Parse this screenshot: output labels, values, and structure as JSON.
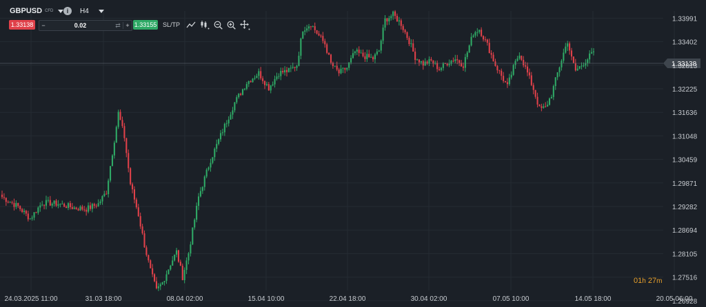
{
  "instrument": {
    "symbol": "GBPUSD",
    "type": "CFD",
    "timeframe": "H4"
  },
  "trade_panel": {
    "sell_price": "1.33138",
    "minus_label": "−",
    "quantity": "0.02",
    "swap_icon": "⇄",
    "plus_label": "+",
    "buy_price": "1.33155",
    "sltp_label": "SL/TP"
  },
  "toolbar_icons": [
    "line-chart-icon",
    "candles-icon",
    "zoom-out-icon",
    "zoom-in-icon",
    "crosshair-move-icon"
  ],
  "price_axis": {
    "labels": [
      "1.33991",
      "1.33402",
      "1.32813",
      "1.32225",
      "1.31636",
      "1.31048",
      "1.30459",
      "1.29871",
      "1.29282",
      "1.28694",
      "1.28105",
      "1.27516",
      "1.26928"
    ],
    "current_price": "1.33138"
  },
  "time_axis": {
    "labels": [
      "24.03.2025 11:00",
      "31.03 18:00",
      "08.04 02:00",
      "15.04 10:00",
      "22.04 18:00",
      "30.04 02:00",
      "07.05 10:00",
      "14.05 18:00",
      "20.05 06:00"
    ]
  },
  "countdown": {
    "hours": "01",
    "h_unit": "h",
    "minutes": "27",
    "m_unit": "m"
  },
  "colors": {
    "background": "#1b2027",
    "up": "#2faa66",
    "down": "#e0414a",
    "grid": "#252b33",
    "current_line": "#6b737b",
    "countdown": "#e8a02b"
  },
  "chart_data": {
    "type": "candlestick",
    "symbol": "GBPUSD",
    "timeframe": "H4",
    "ylim": [
      1.2677,
      1.3417
    ],
    "close_path": [
      {
        "bar": 0,
        "close": 1.2952
      },
      {
        "bar": 8,
        "close": 1.2928
      },
      {
        "bar": 14,
        "close": 1.2898
      },
      {
        "bar": 20,
        "close": 1.2938
      },
      {
        "bar": 28,
        "close": 1.2935
      },
      {
        "bar": 36,
        "close": 1.2925
      },
      {
        "bar": 42,
        "close": 1.2922
      },
      {
        "bar": 48,
        "close": 1.2935
      },
      {
        "bar": 52,
        "close": 1.2965
      },
      {
        "bar": 56,
        "close": 1.3095
      },
      {
        "bar": 58,
        "close": 1.3162
      },
      {
        "bar": 61,
        "close": 1.3102
      },
      {
        "bar": 64,
        "close": 1.2985
      },
      {
        "bar": 68,
        "close": 1.2908
      },
      {
        "bar": 71,
        "close": 1.2832
      },
      {
        "bar": 74,
        "close": 1.2768
      },
      {
        "bar": 77,
        "close": 1.2718
      },
      {
        "bar": 80,
        "close": 1.2738
      },
      {
        "bar": 84,
        "close": 1.2785
      },
      {
        "bar": 87,
        "close": 1.2815
      },
      {
        "bar": 90,
        "close": 1.2752
      },
      {
        "bar": 93,
        "close": 1.2812
      },
      {
        "bar": 98,
        "close": 1.2952
      },
      {
        "bar": 104,
        "close": 1.3045
      },
      {
        "bar": 110,
        "close": 1.3118
      },
      {
        "bar": 116,
        "close": 1.3188
      },
      {
        "bar": 122,
        "close": 1.3238
      },
      {
        "bar": 128,
        "close": 1.3262
      },
      {
        "bar": 133,
        "close": 1.3225
      },
      {
        "bar": 138,
        "close": 1.3262
      },
      {
        "bar": 143,
        "close": 1.3268
      },
      {
        "bar": 147,
        "close": 1.3282
      },
      {
        "bar": 150,
        "close": 1.3372
      },
      {
        "bar": 154,
        "close": 1.3385
      },
      {
        "bar": 158,
        "close": 1.3355
      },
      {
        "bar": 161,
        "close": 1.3335
      },
      {
        "bar": 164,
        "close": 1.3285
      },
      {
        "bar": 168,
        "close": 1.3262
      },
      {
        "bar": 172,
        "close": 1.3275
      },
      {
        "bar": 176,
        "close": 1.3315
      },
      {
        "bar": 180,
        "close": 1.3305
      },
      {
        "bar": 185,
        "close": 1.3298
      },
      {
        "bar": 188,
        "close": 1.3318
      },
      {
        "bar": 191,
        "close": 1.3395
      },
      {
        "bar": 195,
        "close": 1.3408
      },
      {
        "bar": 199,
        "close": 1.3385
      },
      {
        "bar": 203,
        "close": 1.3342
      },
      {
        "bar": 206,
        "close": 1.3302
      },
      {
        "bar": 210,
        "close": 1.3285
      },
      {
        "bar": 214,
        "close": 1.3292
      },
      {
        "bar": 218,
        "close": 1.3272
      },
      {
        "bar": 222,
        "close": 1.3288
      },
      {
        "bar": 226,
        "close": 1.3298
      },
      {
        "bar": 230,
        "close": 1.3282
      },
      {
        "bar": 235,
        "close": 1.3362
      },
      {
        "bar": 238,
        "close": 1.3372
      },
      {
        "bar": 242,
        "close": 1.3332
      },
      {
        "bar": 246,
        "close": 1.3282
      },
      {
        "bar": 249,
        "close": 1.3255
      },
      {
        "bar": 252,
        "close": 1.3228
      },
      {
        "bar": 255,
        "close": 1.3275
      },
      {
        "bar": 258,
        "close": 1.3312
      },
      {
        "bar": 262,
        "close": 1.3262
      },
      {
        "bar": 265,
        "close": 1.3222
      },
      {
        "bar": 268,
        "close": 1.3172
      },
      {
        "bar": 271,
        "close": 1.3175
      },
      {
        "bar": 274,
        "close": 1.3208
      },
      {
        "bar": 277,
        "close": 1.3262
      },
      {
        "bar": 280,
        "close": 1.3312
      },
      {
        "bar": 282,
        "close": 1.3342
      },
      {
        "bar": 284,
        "close": 1.3298
      },
      {
        "bar": 286,
        "close": 1.3268
      },
      {
        "bar": 289,
        "close": 1.3282
      },
      {
        "bar": 292,
        "close": 1.3298
      },
      {
        "bar": 295,
        "close": 1.3316
      }
    ]
  }
}
